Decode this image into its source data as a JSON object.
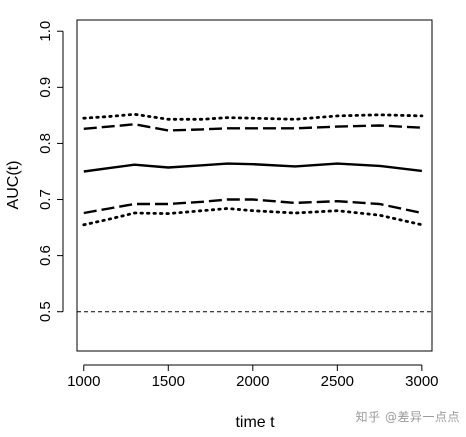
{
  "chart_data": {
    "type": "line",
    "title": "",
    "xlabel": "time t",
    "ylabel": "AUC(t)",
    "xlim": [
      960,
      3060
    ],
    "ylim": [
      0.43,
      1.02
    ],
    "x_ticks": [
      1000,
      1500,
      2000,
      2500,
      3000
    ],
    "y_ticks": [
      0.5,
      0.6,
      0.7,
      0.8,
      0.9,
      1.0
    ],
    "y_tick_labels": [
      "0.5",
      "0.6",
      "0.7",
      "0.8",
      "0.9",
      "1.0"
    ],
    "grid": false,
    "reference_line": {
      "y": 0.5,
      "style": "dashed"
    },
    "series": [
      {
        "style": "dotted",
        "x": [
          1000,
          1150,
          1300,
          1500,
          1700,
          1850,
          2000,
          2250,
          2500,
          2750,
          3000
        ],
        "values": [
          0.845,
          0.848,
          0.852,
          0.843,
          0.843,
          0.846,
          0.845,
          0.843,
          0.849,
          0.851,
          0.849
        ]
      },
      {
        "style": "dashed",
        "x": [
          1000,
          1150,
          1300,
          1500,
          1700,
          1850,
          2000,
          2250,
          2500,
          2750,
          3000
        ],
        "values": [
          0.826,
          0.83,
          0.834,
          0.823,
          0.825,
          0.827,
          0.827,
          0.827,
          0.83,
          0.832,
          0.828
        ]
      },
      {
        "style": "solid",
        "x": [
          1000,
          1150,
          1300,
          1500,
          1700,
          1850,
          2000,
          2250,
          2500,
          2750,
          3000
        ],
        "values": [
          0.75,
          0.756,
          0.762,
          0.757,
          0.761,
          0.764,
          0.763,
          0.759,
          0.764,
          0.76,
          0.751
        ]
      },
      {
        "style": "dashed",
        "x": [
          1000,
          1150,
          1300,
          1500,
          1700,
          1850,
          2000,
          2250,
          2500,
          2750,
          3000
        ],
        "values": [
          0.676,
          0.684,
          0.692,
          0.692,
          0.696,
          0.7,
          0.7,
          0.694,
          0.697,
          0.692,
          0.676
        ]
      },
      {
        "style": "dotted",
        "x": [
          1000,
          1150,
          1300,
          1500,
          1700,
          1850,
          2000,
          2250,
          2500,
          2750,
          3000
        ],
        "values": [
          0.655,
          0.665,
          0.676,
          0.675,
          0.68,
          0.684,
          0.68,
          0.676,
          0.68,
          0.672,
          0.655
        ]
      }
    ]
  },
  "watermark": "知乎 @差异一点点"
}
